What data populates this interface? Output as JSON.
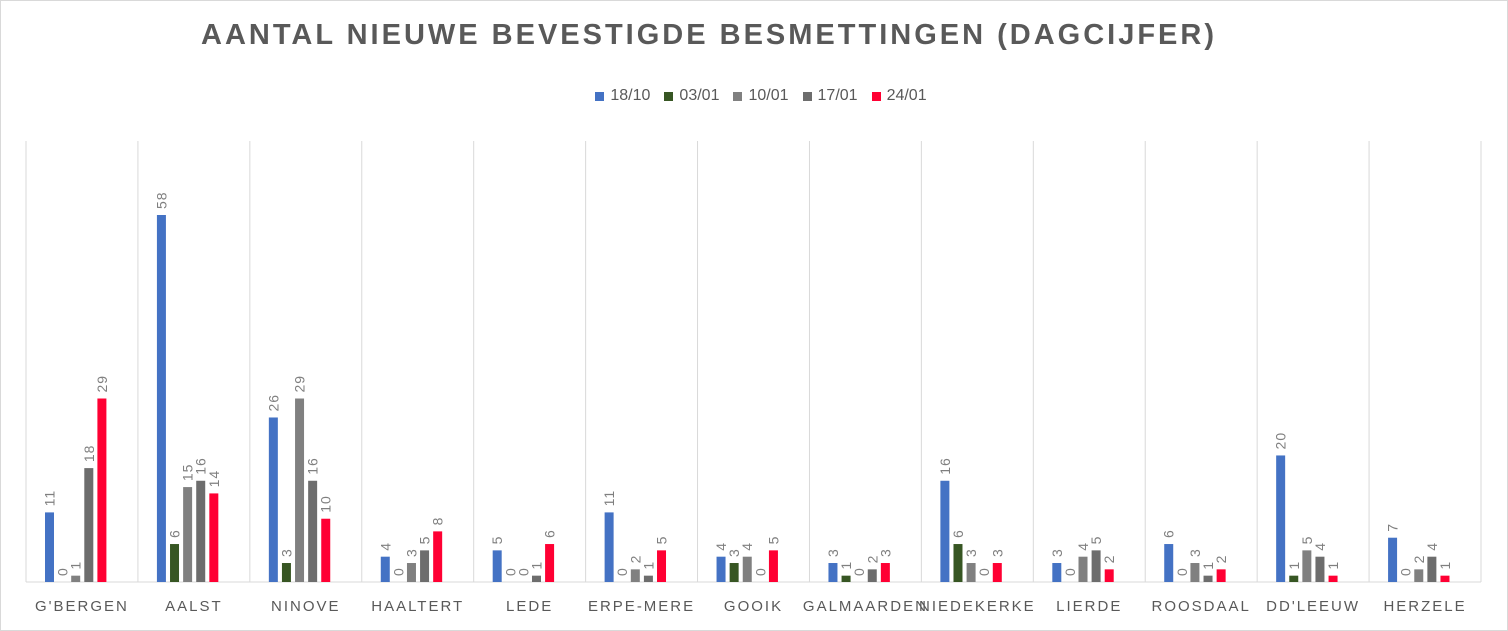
{
  "chart_data": {
    "type": "bar",
    "title": "AANTAL NIEUWE BEVESTIGDE BESMETTINGEN (DAGCIJFER)",
    "categories": [
      "G'BERGEN",
      "AALST",
      "NINOVE",
      "HAALTERT",
      "LEDE",
      "ERPE-MERE",
      "GOOIK",
      "GALMAARDEN",
      "NIEDEKERKE",
      "LIERDE",
      "ROOSDAAL",
      "DD'LEEUW",
      "HERZELE"
    ],
    "series": [
      {
        "name": "18/10",
        "color": "#4472c4",
        "values": [
          11,
          58,
          26,
          4,
          5,
          11,
          4,
          3,
          16,
          3,
          6,
          20,
          7
        ]
      },
      {
        "name": "03/01",
        "color": "#375623",
        "values": [
          0,
          6,
          3,
          0,
          0,
          0,
          3,
          1,
          6,
          0,
          0,
          1,
          0
        ]
      },
      {
        "name": "10/01",
        "color": "#808080",
        "values": [
          1,
          15,
          29,
          3,
          0,
          2,
          4,
          0,
          3,
          4,
          3,
          5,
          2
        ]
      },
      {
        "name": "17/01",
        "color": "#6d6d6d",
        "values": [
          18,
          16,
          16,
          5,
          1,
          1,
          0,
          2,
          0,
          5,
          1,
          4,
          4
        ]
      },
      {
        "name": "24/01",
        "color": "#ff0033",
        "values": [
          29,
          14,
          10,
          8,
          6,
          5,
          5,
          3,
          3,
          2,
          2,
          1,
          1
        ]
      }
    ],
    "ylim": [
      0,
      62
    ],
    "grid": false,
    "category_separators": true,
    "legend_position": "top",
    "data_labels": "vertical"
  }
}
